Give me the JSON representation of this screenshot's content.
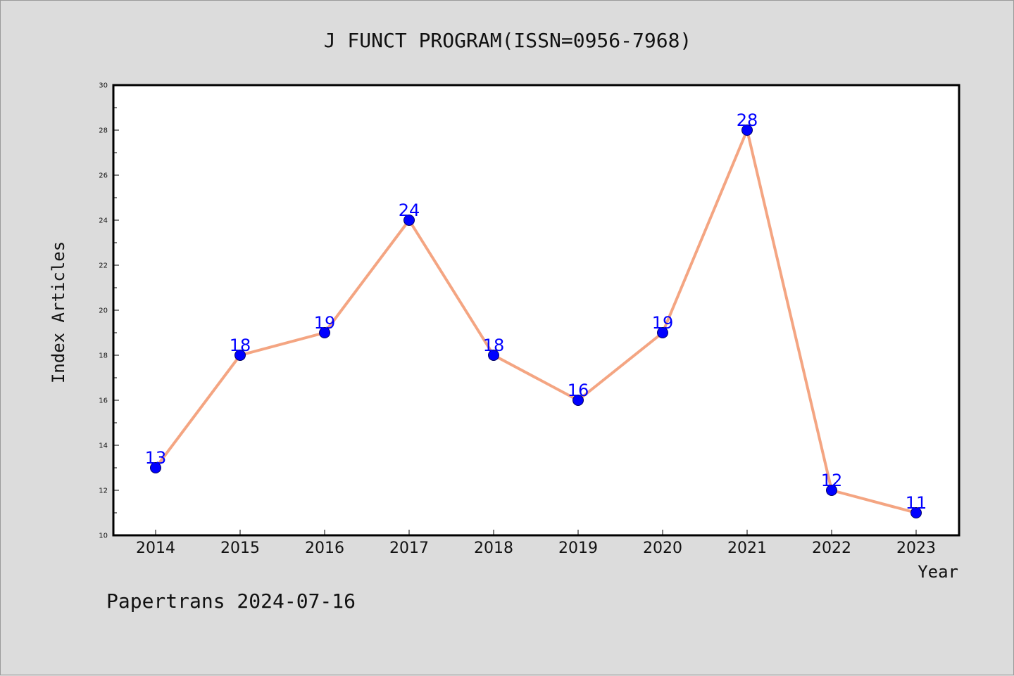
{
  "chart_data": {
    "type": "line",
    "title": "J FUNCT PROGRAM(ISSN=0956-7968)",
    "xlabel": "Year",
    "ylabel": "Index Articles",
    "categories": [
      "2014",
      "2015",
      "2016",
      "2017",
      "2018",
      "2019",
      "2020",
      "2021",
      "2022",
      "2023"
    ],
    "series": [
      {
        "values": [
          13,
          18,
          19,
          24,
          18,
          16,
          19,
          28,
          12,
          11
        ]
      }
    ],
    "ylim": [
      10,
      30
    ],
    "yticks": [
      "10",
      "12",
      "14",
      "16",
      "18",
      "20",
      "22",
      "24",
      "26",
      "28",
      "30"
    ],
    "data_labels": true,
    "grid": false,
    "colors": {
      "line": "#f4a582",
      "marker": "#0000ff",
      "data_label": "#0000ff",
      "plot_background": "#ffffff",
      "page_background": "#dcdcdc"
    }
  },
  "footer": "Papertrans 2024-07-16"
}
